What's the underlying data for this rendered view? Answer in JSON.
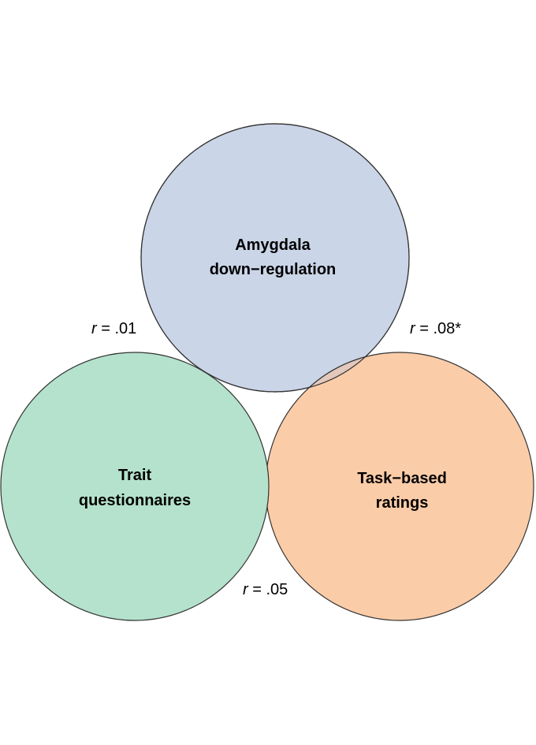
{
  "circles": {
    "amygdala": {
      "line1": "Amygdala",
      "line2": "down−regulation",
      "fill": "#cad5e7"
    },
    "trait": {
      "line1": "Trait",
      "line2": "questionnaires",
      "fill": "#b4e2cc"
    },
    "task": {
      "line1": "Task−based",
      "line2": "ratings",
      "fill": "#fbcca8"
    }
  },
  "correlations": {
    "amygdala_trait": {
      "r_symbol": "r",
      "value": " = .01"
    },
    "amygdala_task": {
      "r_symbol": "r",
      "value": " = .08*"
    },
    "trait_task": {
      "r_symbol": "r",
      "value": " = .05"
    }
  },
  "outline_color": "#333333"
}
